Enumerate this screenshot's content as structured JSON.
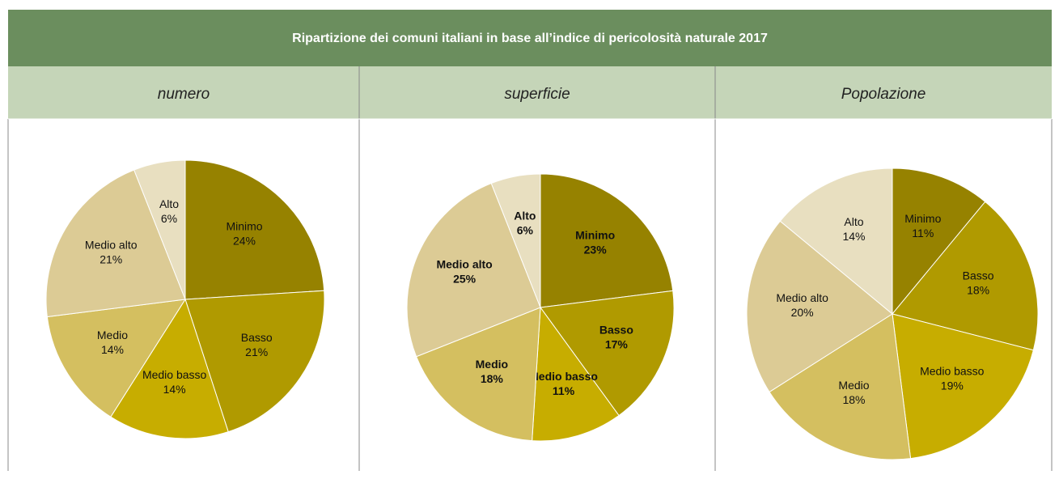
{
  "title": "Ripartizione dei comuni italiani in base all’indice di pericolosità naturale 2017",
  "chart_data": [
    {
      "type": "pie",
      "title": "numero",
      "categories": [
        "Minimo",
        "Basso",
        "Medio basso",
        "Medio",
        "Medio alto",
        "Alto"
      ],
      "values": [
        24,
        21,
        14,
        14,
        21,
        6
      ],
      "value_labels": [
        "24%",
        "21%",
        "14%",
        "14%",
        "21%",
        "6%"
      ],
      "colors": [
        "#968200",
        "#b09a00",
        "#c7ad00",
        "#d4bf60",
        "#dccb95",
        "#e8dfc0"
      ]
    },
    {
      "type": "pie",
      "title": "superficie",
      "categories": [
        "Minimo",
        "Basso",
        "Medio basso",
        "Medio",
        "Medio alto",
        "Alto"
      ],
      "values": [
        23,
        17,
        11,
        18,
        25,
        6
      ],
      "value_labels": [
        "23%",
        "17%",
        "11%",
        "18%",
        "25%",
        "6%"
      ],
      "colors": [
        "#968200",
        "#b09a00",
        "#c7ad00",
        "#d4bf60",
        "#dccb95",
        "#e8dfc0"
      ],
      "label_bold": true
    },
    {
      "type": "pie",
      "title": "Popolazione",
      "categories": [
        "Minimo",
        "Basso",
        "Medio basso",
        "Medio",
        "Medio alto",
        "Alto"
      ],
      "values": [
        11,
        18,
        19,
        18,
        20,
        14
      ],
      "value_labels": [
        "11%",
        "18%",
        "19%",
        "18%",
        "20%",
        "14%"
      ],
      "colors": [
        "#968200",
        "#b09a00",
        "#c7ad00",
        "#d4bf60",
        "#dccb95",
        "#e8dfc0"
      ]
    }
  ]
}
